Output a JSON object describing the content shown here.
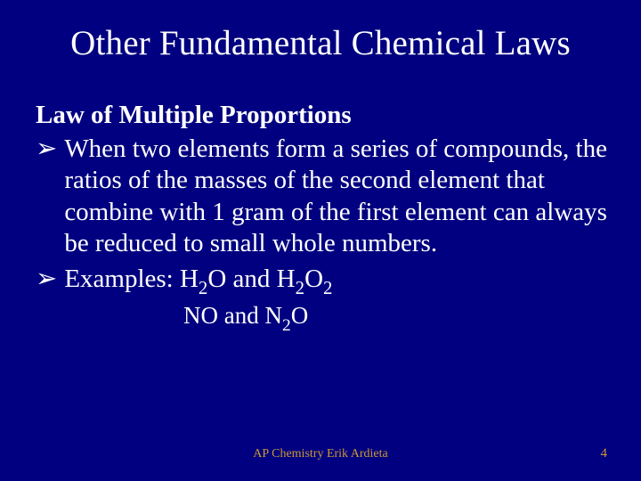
{
  "slide": {
    "title": "Other Fundamental Chemical Laws",
    "subheading": "Law of Multiple Proportions",
    "bullet_marker": "➢",
    "bullet1": "When two elements form a series of compounds, the ratios of the masses of the second element that combine with 1 gram of the first element can always be reduced to small whole numbers.",
    "bullet2_prefix": "Examples: H",
    "bullet2_sub1": "2",
    "bullet2_mid1": "O and H",
    "bullet2_sub2": "2",
    "bullet2_mid2": "O",
    "bullet2_sub3": "2",
    "line3_prefix": "NO and N",
    "line3_sub1": "2",
    "line3_suffix": "O",
    "footer": "AP Chemistry Erik Ardieta",
    "page_number": "4",
    "background_color": "#000080",
    "text_color": "#ffffff",
    "footer_color": "#cc9933",
    "title_fontsize": 39,
    "body_fontsize": 29,
    "footer_fontsize": 14
  }
}
